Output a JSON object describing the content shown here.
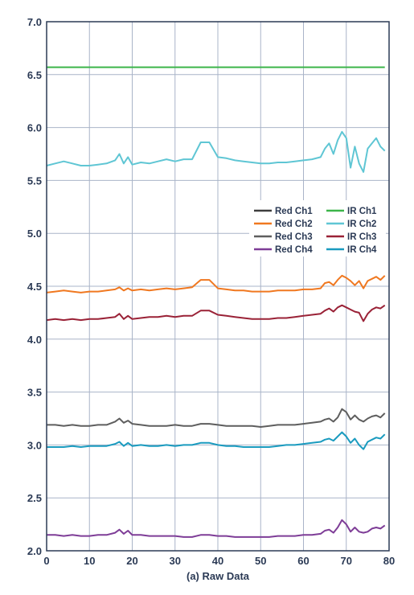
{
  "chart_data": {
    "type": "line",
    "title": "",
    "xlabel": "(a) Raw Data",
    "ylabel": "",
    "xlim": [
      0,
      80
    ],
    "ylim": [
      2.0,
      7.0
    ],
    "xticks": [
      0,
      10,
      20,
      30,
      40,
      50,
      60,
      70,
      80
    ],
    "yticks": [
      2.0,
      2.5,
      3.0,
      3.5,
      4.0,
      4.5,
      5.0,
      5.5,
      6.0,
      6.5,
      7.0
    ],
    "grid": true,
    "legend_position": "right-middle",
    "legend_layout": "two-columns",
    "x": [
      0,
      2,
      4,
      6,
      8,
      10,
      12,
      14,
      16,
      17,
      18,
      19,
      20,
      22,
      24,
      26,
      28,
      30,
      32,
      34,
      36,
      38,
      40,
      42,
      44,
      46,
      48,
      50,
      52,
      54,
      56,
      58,
      60,
      62,
      64,
      65,
      66,
      67,
      68,
      69,
      70,
      71,
      72,
      73,
      74,
      75,
      76,
      77,
      78,
      79
    ],
    "series": [
      {
        "name": "Red Ch1",
        "color": "#3d3d3d",
        "values": [
          null,
          null,
          null,
          null,
          null,
          null,
          null,
          null,
          null,
          null,
          null,
          null,
          null,
          null,
          null,
          null,
          null,
          null,
          null,
          null,
          null,
          null,
          null,
          null,
          null,
          null,
          null,
          null,
          null,
          null,
          null,
          null,
          null,
          null,
          null,
          null,
          null,
          null,
          null,
          null,
          null,
          null,
          null,
          null,
          null,
          null,
          null,
          null,
          null,
          null
        ]
      },
      {
        "name": "Red Ch2",
        "color": "#f07820",
        "values": [
          4.44,
          4.45,
          4.46,
          4.45,
          4.44,
          4.45,
          4.45,
          4.46,
          4.47,
          4.49,
          4.46,
          4.48,
          4.46,
          4.47,
          4.46,
          4.47,
          4.48,
          4.47,
          4.48,
          4.49,
          4.56,
          4.56,
          4.48,
          4.47,
          4.46,
          4.46,
          4.45,
          4.45,
          4.45,
          4.46,
          4.46,
          4.46,
          4.47,
          4.47,
          4.48,
          4.53,
          4.54,
          4.51,
          4.56,
          4.6,
          4.58,
          4.55,
          4.51,
          4.55,
          4.48,
          4.55,
          4.57,
          4.59,
          4.56,
          4.6
        ]
      },
      {
        "name": "Red Ch3",
        "color": "#5e5e5e",
        "values": [
          3.19,
          3.19,
          3.18,
          3.19,
          3.18,
          3.18,
          3.19,
          3.19,
          3.22,
          3.25,
          3.21,
          3.23,
          3.2,
          3.19,
          3.18,
          3.18,
          3.18,
          3.19,
          3.18,
          3.18,
          3.2,
          3.2,
          3.19,
          3.18,
          3.18,
          3.18,
          3.18,
          3.17,
          3.18,
          3.19,
          3.19,
          3.19,
          3.2,
          3.21,
          3.22,
          3.24,
          3.25,
          3.22,
          3.26,
          3.34,
          3.31,
          3.24,
          3.28,
          3.24,
          3.22,
          3.25,
          3.27,
          3.28,
          3.26,
          3.3
        ]
      },
      {
        "name": "Red Ch4",
        "color": "#7e3d97",
        "values": [
          2.15,
          2.15,
          2.14,
          2.15,
          2.14,
          2.14,
          2.15,
          2.15,
          2.17,
          2.2,
          2.16,
          2.19,
          2.15,
          2.15,
          2.14,
          2.14,
          2.14,
          2.14,
          2.13,
          2.13,
          2.15,
          2.15,
          2.14,
          2.14,
          2.13,
          2.13,
          2.13,
          2.13,
          2.13,
          2.14,
          2.14,
          2.14,
          2.15,
          2.15,
          2.16,
          2.19,
          2.2,
          2.17,
          2.22,
          2.29,
          2.25,
          2.18,
          2.22,
          2.18,
          2.17,
          2.18,
          2.21,
          2.22,
          2.21,
          2.24
        ]
      },
      {
        "name": "IR Ch1",
        "color": "#3cb54a",
        "values": [
          6.57,
          6.57,
          6.57,
          6.57,
          6.57,
          6.57,
          6.57,
          6.57,
          6.57,
          6.57,
          6.57,
          6.57,
          6.57,
          6.57,
          6.57,
          6.57,
          6.57,
          6.57,
          6.57,
          6.57,
          6.57,
          6.57,
          6.57,
          6.57,
          6.57,
          6.57,
          6.57,
          6.57,
          6.57,
          6.57,
          6.57,
          6.57,
          6.57,
          6.57,
          6.57,
          6.57,
          6.57,
          6.57,
          6.57,
          6.57,
          6.57,
          6.57,
          6.57,
          6.57,
          6.57,
          6.57,
          6.57,
          6.57,
          6.57,
          6.57
        ]
      },
      {
        "name": "IR Ch2",
        "color": "#5fc6d4",
        "values": [
          5.64,
          5.66,
          5.68,
          5.66,
          5.64,
          5.64,
          5.65,
          5.66,
          5.69,
          5.75,
          5.66,
          5.72,
          5.65,
          5.67,
          5.66,
          5.68,
          5.7,
          5.68,
          5.7,
          5.7,
          5.86,
          5.86,
          5.72,
          5.71,
          5.69,
          5.68,
          5.67,
          5.66,
          5.66,
          5.67,
          5.67,
          5.68,
          5.69,
          5.7,
          5.72,
          5.8,
          5.85,
          5.75,
          5.88,
          5.96,
          5.9,
          5.62,
          5.82,
          5.66,
          5.58,
          5.8,
          5.85,
          5.9,
          5.82,
          5.78
        ]
      },
      {
        "name": "IR Ch3",
        "color": "#9a2237",
        "values": [
          4.18,
          4.19,
          4.18,
          4.19,
          4.18,
          4.19,
          4.19,
          4.2,
          4.21,
          4.24,
          4.19,
          4.22,
          4.19,
          4.2,
          4.21,
          4.21,
          4.22,
          4.21,
          4.22,
          4.22,
          4.27,
          4.27,
          4.23,
          4.22,
          4.21,
          4.2,
          4.19,
          4.19,
          4.19,
          4.2,
          4.2,
          4.21,
          4.22,
          4.23,
          4.24,
          4.27,
          4.29,
          4.26,
          4.3,
          4.32,
          4.3,
          4.28,
          4.26,
          4.25,
          4.17,
          4.24,
          4.28,
          4.3,
          4.29,
          4.32
        ]
      },
      {
        "name": "IR Ch4",
        "color": "#1a9bbf",
        "values": [
          2.98,
          2.98,
          2.98,
          2.99,
          2.98,
          2.99,
          2.99,
          2.99,
          3.01,
          3.03,
          2.99,
          3.02,
          2.99,
          3.0,
          2.99,
          2.99,
          3.0,
          2.99,
          3.0,
          3.0,
          3.02,
          3.02,
          3.0,
          2.99,
          2.99,
          2.98,
          2.98,
          2.98,
          2.98,
          2.99,
          3.0,
          3.0,
          3.01,
          3.02,
          3.03,
          3.05,
          3.06,
          3.04,
          3.08,
          3.12,
          3.08,
          3.02,
          3.06,
          3.0,
          2.96,
          3.03,
          3.05,
          3.07,
          3.06,
          3.1
        ]
      }
    ]
  }
}
